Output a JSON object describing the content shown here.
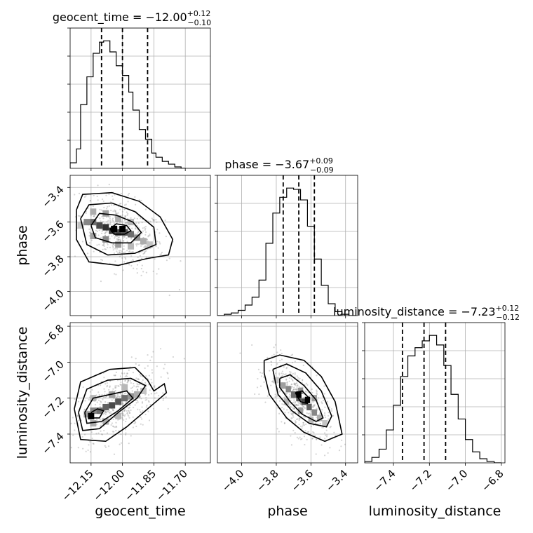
{
  "chart_data": {
    "type": "corner",
    "parameters": [
      "geocent_time",
      "phase",
      "luminosity_distance"
    ],
    "axis_labels": {
      "geocent_time": "geocent_time",
      "phase": "phase",
      "luminosity_distance": "luminosity_distance"
    },
    "titles": [
      {
        "param": "geocent_time",
        "text": "geocent_time = −12.00",
        "plus": "+0.12",
        "minus": "−0.10"
      },
      {
        "param": "phase",
        "text": "phase = −3.67",
        "plus": "+0.09",
        "minus": "−0.09"
      },
      {
        "param": "luminosity_distance",
        "text": "luminosity_distance = −7.23",
        "plus": "+0.12",
        "minus": "−0.12"
      }
    ],
    "ranges": {
      "geocent_time": [
        -12.25,
        -11.58
      ],
      "phase": [
        -4.14,
        -3.33
      ],
      "luminosity_distance": [
        -7.56,
        -6.78
      ]
    },
    "ticks": {
      "geocent_time": {
        "values": [
          -12.15,
          -12.0,
          -11.85,
          -11.7
        ],
        "labels": [
          "−12.15",
          "−12.00",
          "−11.85",
          "−11.70"
        ]
      },
      "phase": {
        "values": [
          -4.0,
          -3.8,
          -3.6,
          -3.4
        ],
        "labels": [
          "−4.0",
          "−3.8",
          "−3.6",
          "−3.4"
        ]
      },
      "luminosity_distance": {
        "values": [
          -7.4,
          -7.2,
          -7.0,
          -6.8
        ],
        "labels": [
          "−7.4",
          "−7.2",
          "−7.0",
          "−6.8"
        ]
      }
    },
    "quantiles": {
      "geocent_time": [
        -12.1,
        -12.0,
        -11.88
      ],
      "phase": [
        -3.76,
        -3.67,
        -3.58
      ],
      "luminosity_distance": [
        -7.35,
        -7.23,
        -7.11
      ]
    },
    "histograms": {
      "geocent_time": {
        "edges": [
          -12.25,
          -12.22,
          -12.2,
          -12.17,
          -12.14,
          -12.11,
          -12.09,
          -12.06,
          -12.03,
          -12.0,
          -11.97,
          -11.95,
          -11.92,
          -11.89,
          -11.86,
          -11.84,
          -11.81,
          -11.78,
          -11.75,
          -11.72,
          -11.7
        ],
        "counts": [
          4,
          14,
          46,
          66,
          83,
          91,
          92,
          84,
          74,
          67,
          55,
          42,
          28,
          21,
          11,
          8,
          5,
          3,
          1,
          0
        ]
      },
      "phase": {
        "edges": [
          -4.14,
          -4.1,
          -4.06,
          -4.02,
          -3.98,
          -3.94,
          -3.9,
          -3.86,
          -3.82,
          -3.78,
          -3.74,
          -3.7,
          -3.66,
          -3.62,
          -3.58,
          -3.54,
          -3.5,
          -3.46,
          -3.42,
          -3.38,
          -3.34
        ],
        "counts": [
          0,
          1,
          2,
          4,
          8,
          14,
          27,
          55,
          78,
          90,
          97,
          96,
          88,
          68,
          43,
          23,
          9,
          3,
          1,
          0
        ]
      },
      "luminosity_distance": {
        "edges": [
          -7.56,
          -7.52,
          -7.48,
          -7.44,
          -7.4,
          -7.36,
          -7.32,
          -7.28,
          -7.24,
          -7.2,
          -7.16,
          -7.12,
          -7.08,
          -7.04,
          -7.0,
          -6.96,
          -6.92,
          -6.88,
          -6.84,
          -6.8
        ],
        "counts": [
          1,
          4,
          10,
          24,
          42,
          63,
          78,
          84,
          89,
          93,
          86,
          71,
          50,
          32,
          17,
          8,
          3,
          1,
          0
        ]
      }
    },
    "pair_plots": [
      {
        "x": "geocent_time",
        "y": "phase",
        "cells": [
          [
            -12.2,
            -3.62,
            0.2
          ],
          [
            -12.17,
            -3.6,
            0.45
          ],
          [
            -12.14,
            -3.6,
            0.55
          ],
          [
            -12.11,
            -3.62,
            0.7
          ],
          [
            -12.08,
            -3.63,
            0.8
          ],
          [
            -12.05,
            -3.65,
            0.75
          ],
          [
            -12.02,
            -3.66,
            0.7
          ],
          [
            -11.99,
            -3.66,
            0.65
          ],
          [
            -11.96,
            -3.67,
            0.55
          ],
          [
            -11.93,
            -3.69,
            0.4
          ],
          [
            -11.9,
            -3.71,
            0.3
          ],
          [
            -11.87,
            -3.73,
            0.2
          ],
          [
            -12.14,
            -3.68,
            0.35
          ],
          [
            -12.08,
            -3.7,
            0.45
          ],
          [
            -12.02,
            -3.73,
            0.35
          ],
          [
            -11.96,
            -3.74,
            0.25
          ],
          [
            -12.14,
            -3.54,
            0.3
          ],
          [
            -12.08,
            -3.55,
            0.35
          ],
          [
            -12.02,
            -3.58,
            0.3
          ],
          [
            -11.96,
            -3.6,
            0.25
          ],
          [
            -12.04,
            -3.64,
            1.0
          ],
          [
            -12.0,
            -3.64,
            1.0
          ]
        ],
        "contours": [
          [
            [
              -12.06,
              -3.64
            ],
            [
              -12.03,
              -3.61
            ],
            [
              -11.98,
              -3.62
            ],
            [
              -11.96,
              -3.65
            ],
            [
              -11.99,
              -3.67
            ],
            [
              -12.04,
              -3.67
            ],
            [
              -12.06,
              -3.64
            ]
          ],
          [
            [
              -12.15,
              -3.62
            ],
            [
              -12.11,
              -3.55
            ],
            [
              -12.03,
              -3.56
            ],
            [
              -11.95,
              -3.6
            ],
            [
              -11.91,
              -3.66
            ],
            [
              -11.96,
              -3.72
            ],
            [
              -12.05,
              -3.72
            ],
            [
              -12.13,
              -3.69
            ],
            [
              -12.15,
              -3.62
            ]
          ],
          [
            [
              -12.2,
              -3.58
            ],
            [
              -12.16,
              -3.5
            ],
            [
              -12.05,
              -3.49
            ],
            [
              -11.94,
              -3.54
            ],
            [
              -11.85,
              -3.63
            ],
            [
              -11.84,
              -3.73
            ],
            [
              -11.94,
              -3.78
            ],
            [
              -12.07,
              -3.79
            ],
            [
              -12.17,
              -3.73
            ],
            [
              -12.2,
              -3.58
            ]
          ],
          [
            [
              -12.22,
              -3.53
            ],
            [
              -12.19,
              -3.44
            ],
            [
              -12.05,
              -3.43
            ],
            [
              -11.92,
              -3.48
            ],
            [
              -11.82,
              -3.57
            ],
            [
              -11.76,
              -3.7
            ],
            [
              -11.78,
              -3.79
            ],
            [
              -11.88,
              -3.81
            ],
            [
              -12.02,
              -3.85
            ],
            [
              -12.16,
              -3.83
            ],
            [
              -12.22,
              -3.7
            ],
            [
              -12.22,
              -3.53
            ]
          ]
        ],
        "scatter": {
          "center": [
            -12.0,
            -3.66
          ],
          "sd": [
            0.1,
            0.11
          ],
          "corr": -0.45,
          "n": 500
        }
      },
      {
        "x": "geocent_time",
        "y": "luminosity_distance",
        "cells": [
          [
            -12.17,
            -7.29,
            0.35
          ],
          [
            -12.14,
            -7.27,
            0.45
          ],
          [
            -12.11,
            -7.27,
            0.55
          ],
          [
            -12.08,
            -7.25,
            0.6
          ],
          [
            -12.05,
            -7.24,
            0.7
          ],
          [
            -12.02,
            -7.22,
            0.65
          ],
          [
            -11.99,
            -7.2,
            0.55
          ],
          [
            -11.96,
            -7.19,
            0.4
          ],
          [
            -11.93,
            -7.18,
            0.3
          ],
          [
            -11.9,
            -7.16,
            0.2
          ],
          [
            -12.14,
            -7.34,
            0.3
          ],
          [
            -12.08,
            -7.33,
            0.3
          ],
          [
            -12.02,
            -7.3,
            0.25
          ],
          [
            -12.14,
            -7.2,
            0.25
          ],
          [
            -12.05,
            -7.18,
            0.35
          ],
          [
            -11.99,
            -7.14,
            0.25
          ],
          [
            -12.15,
            -7.3,
            1.0
          ]
        ],
        "contours": [
          [
            [
              -12.15,
              -7.28
            ],
            [
              -12.12,
              -7.26
            ],
            [
              -12.09,
              -7.27
            ],
            [
              -12.11,
              -7.31
            ],
            [
              -12.14,
              -7.31
            ],
            [
              -12.15,
              -7.28
            ]
          ],
          [
            [
              -12.18,
              -7.28
            ],
            [
              -12.14,
              -7.2
            ],
            [
              -12.06,
              -7.18
            ],
            [
              -11.98,
              -7.16
            ],
            [
              -11.95,
              -7.2
            ],
            [
              -12.02,
              -7.27
            ],
            [
              -12.1,
              -7.33
            ],
            [
              -12.17,
              -7.34
            ],
            [
              -12.18,
              -7.28
            ]
          ],
          [
            [
              -12.21,
              -7.28
            ],
            [
              -12.17,
              -7.15
            ],
            [
              -12.07,
              -7.1
            ],
            [
              -11.96,
              -7.09
            ],
            [
              -11.89,
              -7.13
            ],
            [
              -11.93,
              -7.2
            ],
            [
              -12.02,
              -7.28
            ],
            [
              -12.11,
              -7.37
            ],
            [
              -12.19,
              -7.38
            ],
            [
              -12.21,
              -7.28
            ]
          ],
          [
            [
              -12.23,
              -7.26
            ],
            [
              -12.2,
              -7.11
            ],
            [
              -12.06,
              -7.04
            ],
            [
              -11.94,
              -7.03
            ],
            [
              -11.88,
              -7.1
            ],
            [
              -11.85,
              -7.16
            ],
            [
              -11.8,
              -7.12
            ],
            [
              -11.79,
              -7.17
            ],
            [
              -11.88,
              -7.26
            ],
            [
              -11.98,
              -7.36
            ],
            [
              -12.08,
              -7.44
            ],
            [
              -12.2,
              -7.43
            ],
            [
              -12.23,
              -7.26
            ]
          ]
        ],
        "scatter": {
          "center": [
            -12.02,
            -7.23
          ],
          "sd": [
            0.1,
            0.11
          ],
          "corr": 0.5,
          "n": 500
        }
      },
      {
        "x": "phase",
        "y": "luminosity_distance",
        "cells": [
          [
            -3.8,
            -7.1,
            0.2
          ],
          [
            -3.76,
            -7.13,
            0.35
          ],
          [
            -3.73,
            -7.15,
            0.45
          ],
          [
            -3.7,
            -7.18,
            0.55
          ],
          [
            -3.67,
            -7.2,
            0.65
          ],
          [
            -3.64,
            -7.22,
            0.7
          ],
          [
            -3.61,
            -7.25,
            0.6
          ],
          [
            -3.58,
            -7.28,
            0.45
          ],
          [
            -3.55,
            -7.31,
            0.3
          ],
          [
            -3.52,
            -7.34,
            0.2
          ],
          [
            -3.74,
            -7.22,
            0.25
          ],
          [
            -3.66,
            -7.27,
            0.35
          ],
          [
            -3.6,
            -7.32,
            0.25
          ],
          [
            -3.66,
            -7.16,
            0.4
          ],
          [
            -3.58,
            -7.2,
            0.35
          ],
          [
            -3.67,
            -7.18,
            1.0
          ],
          [
            -3.62,
            -7.21,
            1.0
          ]
        ],
        "contours": [
          [
            [
              -3.69,
              -7.17
            ],
            [
              -3.65,
              -7.16
            ],
            [
              -3.61,
              -7.2
            ],
            [
              -3.62,
              -7.23
            ],
            [
              -3.66,
              -7.22
            ],
            [
              -3.69,
              -7.17
            ]
          ],
          [
            [
              -3.78,
              -7.09
            ],
            [
              -3.72,
              -7.07
            ],
            [
              -3.64,
              -7.13
            ],
            [
              -3.57,
              -7.21
            ],
            [
              -3.53,
              -7.31
            ],
            [
              -3.57,
              -7.33
            ],
            [
              -3.65,
              -7.29
            ],
            [
              -3.72,
              -7.22
            ],
            [
              -3.78,
              -7.14
            ],
            [
              -3.78,
              -7.09
            ]
          ],
          [
            [
              -3.82,
              -7.04
            ],
            [
              -3.74,
              -7.01
            ],
            [
              -3.63,
              -7.06
            ],
            [
              -3.54,
              -7.16
            ],
            [
              -3.48,
              -7.3
            ],
            [
              -3.51,
              -7.36
            ],
            [
              -3.61,
              -7.34
            ],
            [
              -3.71,
              -7.27
            ],
            [
              -3.79,
              -7.18
            ],
            [
              -3.82,
              -7.04
            ]
          ],
          [
            [
              -3.87,
              -6.99
            ],
            [
              -3.78,
              -6.96
            ],
            [
              -3.64,
              -6.99
            ],
            [
              -3.54,
              -7.08
            ],
            [
              -3.46,
              -7.22
            ],
            [
              -3.42,
              -7.4
            ],
            [
              -3.52,
              -7.44
            ],
            [
              -3.64,
              -7.39
            ],
            [
              -3.74,
              -7.31
            ],
            [
              -3.84,
              -7.18
            ],
            [
              -3.87,
              -7.06
            ],
            [
              -3.87,
              -6.99
            ]
          ]
        ],
        "scatter": {
          "center": [
            -3.67,
            -7.22
          ],
          "sd": [
            0.09,
            0.11
          ],
          "corr": -0.62,
          "n": 500
        }
      }
    ],
    "grid": true
  }
}
